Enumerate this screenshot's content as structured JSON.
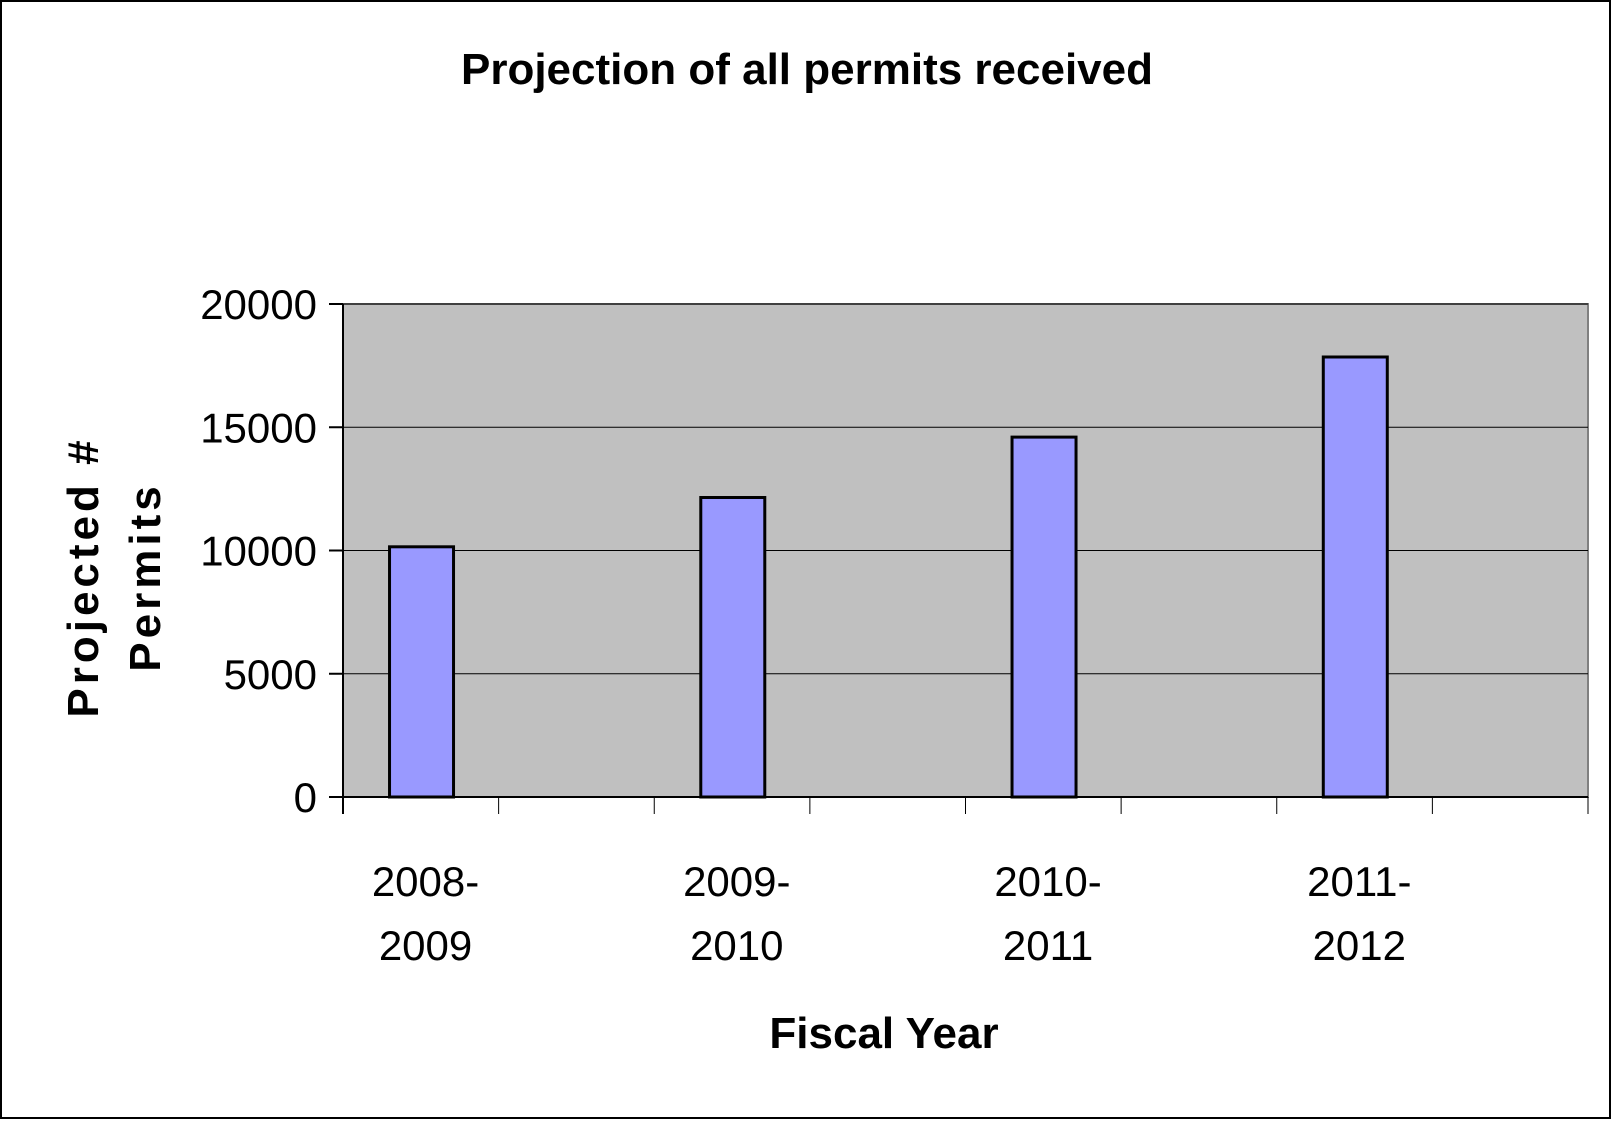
{
  "chart_data": {
    "type": "bar",
    "title": "Projection of all permits received",
    "xlabel": "Fiscal Year",
    "ylabel": "Projected # Permits",
    "ylabel_lines": [
      "Projected #",
      "Permits"
    ],
    "categories": [
      "2008-2009",
      "2009-2010",
      "2010-2011",
      "2011-2012"
    ],
    "category_lines": [
      [
        "2008-",
        "2009"
      ],
      [
        "2009-",
        "2010"
      ],
      [
        "2010-",
        "2011"
      ],
      [
        "2011-",
        "2012"
      ]
    ],
    "values": [
      10150,
      12150,
      14600,
      17850
    ],
    "ylim": [
      0,
      20000
    ],
    "yticks": [
      0,
      5000,
      10000,
      15000,
      20000
    ],
    "ytick_labels": [
      "0",
      "5000",
      "10000",
      "15000",
      "20000"
    ],
    "grid": true,
    "legend": "none",
    "colors": {
      "bar_fill": "#9999FF",
      "bar_stroke": "#000000",
      "plot_background": "#C0C0C0",
      "gridline": "#000000",
      "axis": "#000000",
      "text": "#000000"
    }
  }
}
